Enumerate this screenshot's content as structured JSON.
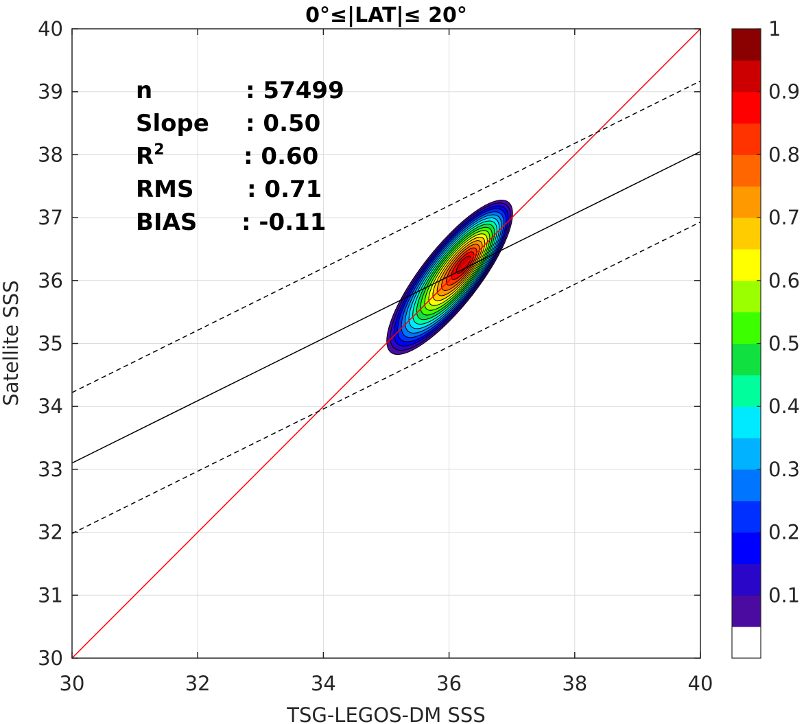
{
  "chart_data": {
    "type": "contour",
    "title": "0°≤|LAT|≤ 20°",
    "xlabel": "TSG-LEGOS-DM SSS",
    "ylabel": "Satellite SSS",
    "xlim": [
      30,
      40
    ],
    "ylim": [
      30,
      40
    ],
    "xticks": [
      30,
      32,
      34,
      36,
      38,
      40
    ],
    "yticks": [
      30,
      31,
      32,
      33,
      34,
      35,
      36,
      37,
      38,
      39,
      40
    ],
    "grid": true,
    "stats": [
      {
        "label": "n",
        "value": ": 57499"
      },
      {
        "label": "Slope",
        "value": ": 0.50"
      },
      {
        "label": "R",
        "sup": "2",
        "value": ": 0.60"
      },
      {
        "label": "RMS",
        "value": ": 0.71"
      },
      {
        "label": "BIAS",
        "value": ": -0.11"
      }
    ],
    "lines": [
      {
        "name": "one-to-one",
        "color": "#ff0000",
        "style": "solid",
        "x": [
          30,
          40
        ],
        "y": [
          30,
          40
        ]
      },
      {
        "name": "regression",
        "color": "#000000",
        "style": "solid",
        "x": [
          30,
          40
        ],
        "y": [
          33.1,
          38.05
        ]
      },
      {
        "name": "upper-bound",
        "color": "#000000",
        "style": "dashed",
        "x": [
          30,
          40
        ],
        "y": [
          34.22,
          39.17
        ]
      },
      {
        "name": "lower-bound",
        "color": "#000000",
        "style": "dashed",
        "x": [
          30,
          40
        ],
        "y": [
          31.98,
          36.93
        ]
      }
    ],
    "density": {
      "center": [
        36.25,
        36.27
      ],
      "levels": [
        0.05,
        0.1,
        0.15,
        0.2,
        0.25,
        0.3,
        0.35,
        0.4,
        0.45,
        0.5,
        0.55,
        0.6,
        0.65,
        0.7,
        0.75,
        0.8,
        0.85,
        0.9
      ]
    },
    "colorbar": {
      "ticks": [
        "0.1",
        "0.2",
        "0.3",
        "0.4",
        "0.5",
        "0.6",
        "0.7",
        "0.8",
        "0.9",
        "1"
      ],
      "colors": [
        "#ffffff",
        "#4b0aa0",
        "#2a06c8",
        "#0000ff",
        "#0030ff",
        "#0075ff",
        "#00b2ff",
        "#00eaff",
        "#00ff9c",
        "#10e040",
        "#3cff00",
        "#9cff00",
        "#ffff00",
        "#ffcc00",
        "#ff9900",
        "#ff6600",
        "#ff3300",
        "#ff0000",
        "#cc0000",
        "#8b0000"
      ]
    }
  }
}
